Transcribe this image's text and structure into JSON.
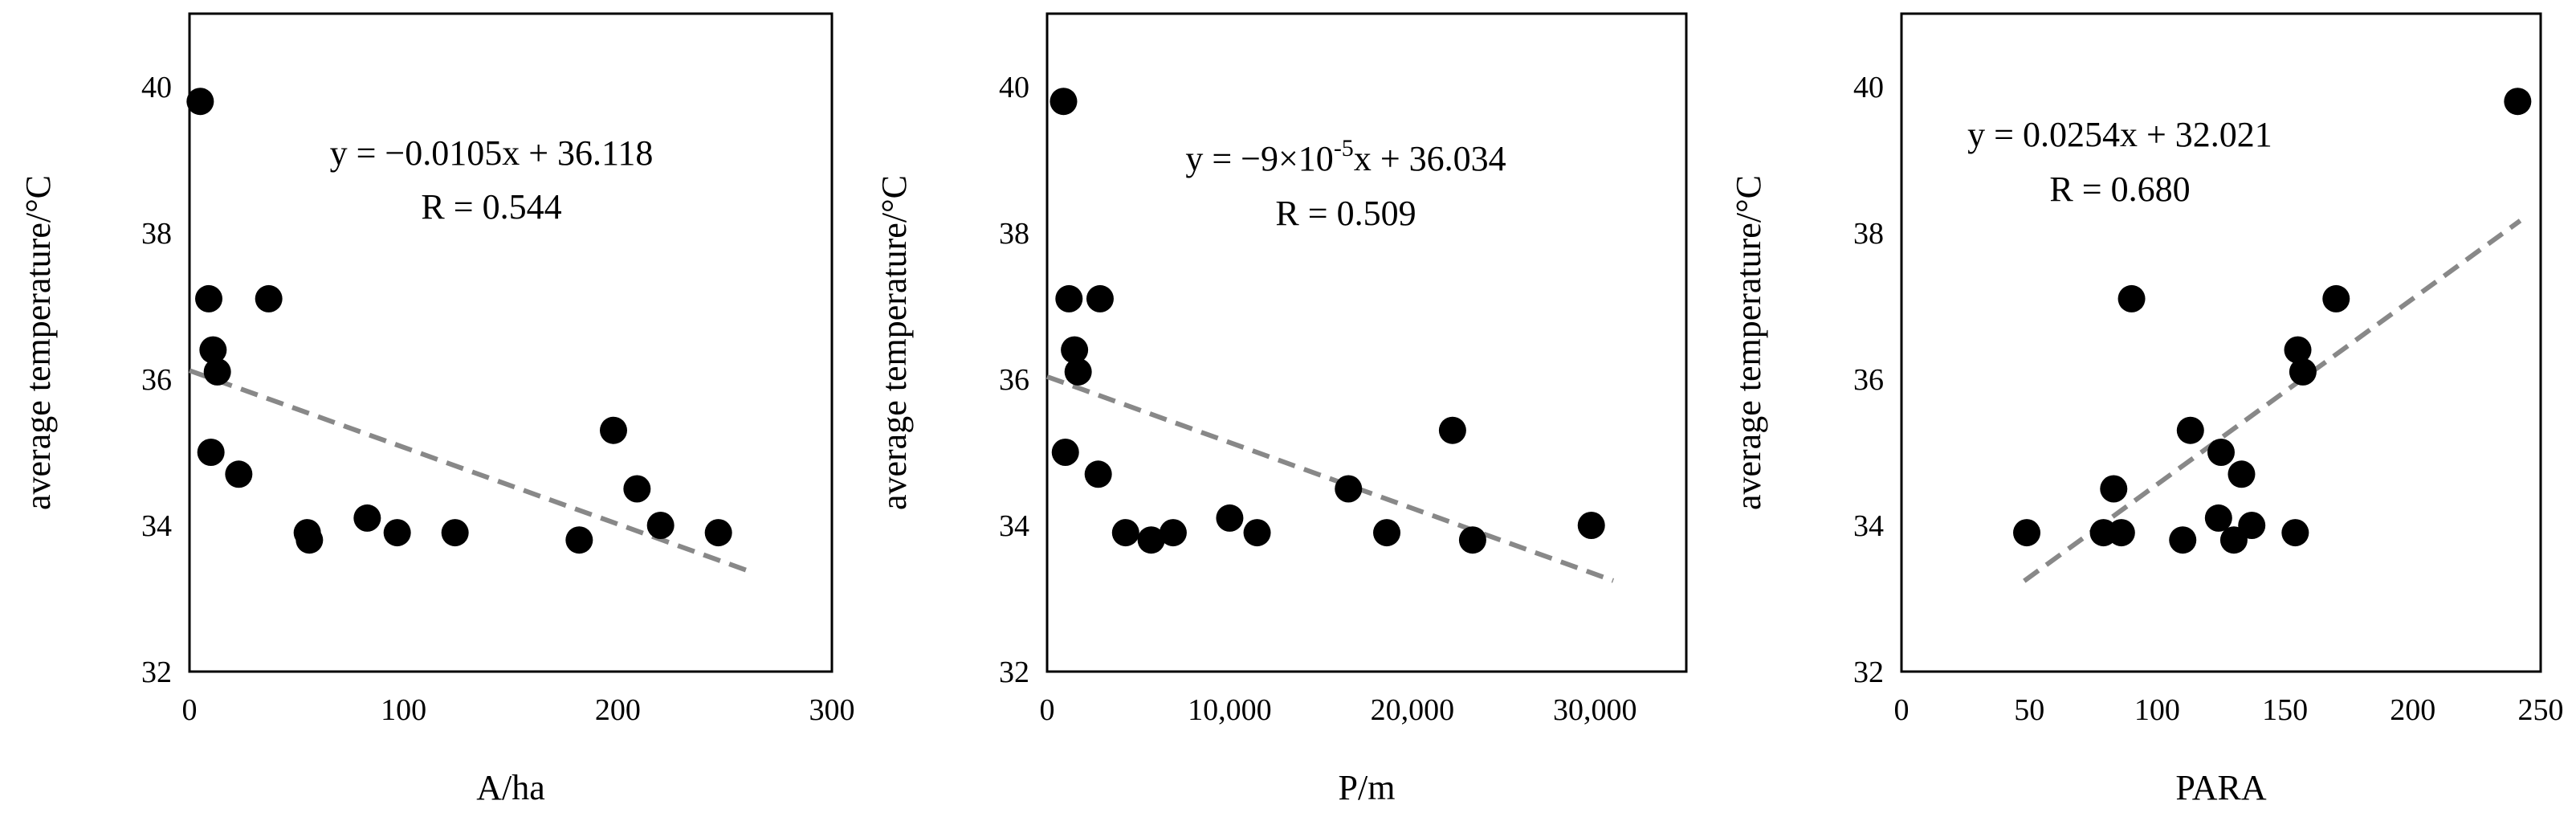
{
  "chart_data": [
    {
      "type": "scatter",
      "xlabel": "A/ha",
      "ylabel": "average temperature/°C",
      "xlim": [
        0,
        300
      ],
      "ylim": [
        32,
        41
      ],
      "x_ticks": [
        "0",
        "100",
        "200",
        "300"
      ],
      "y_ticks": [
        "32",
        "34",
        "36",
        "38",
        "40"
      ],
      "x_tick_values": [
        0,
        100,
        200,
        300
      ],
      "y_tick_values": [
        32,
        34,
        36,
        38,
        40
      ],
      "equation": "y = −0.0105x + 36.118",
      "r_label": "R = 0.544",
      "trendline": {
        "slope": -0.0105,
        "intercept": 36.118,
        "x_range": [
          0,
          260
        ]
      },
      "x": [
        5,
        9,
        10,
        11,
        13,
        23,
        37,
        55,
        56,
        83,
        97,
        124,
        182,
        198,
        209,
        220,
        247
      ],
      "y": [
        39.8,
        37.1,
        35.0,
        36.4,
        36.1,
        34.7,
        37.1,
        33.9,
        33.8,
        34.1,
        33.9,
        33.9,
        33.8,
        35.3,
        34.5,
        34.0,
        33.9
      ]
    },
    {
      "type": "scatter",
      "xlabel": "P/m",
      "ylabel": "average temperature/°C",
      "xlim": [
        0,
        35000
      ],
      "ylim": [
        32,
        41
      ],
      "x_ticks": [
        "0",
        "10,000",
        "20,000",
        "30,000"
      ],
      "y_ticks": [
        "32",
        "34",
        "36",
        "38",
        "40"
      ],
      "x_tick_values": [
        0,
        10000,
        20000,
        30000
      ],
      "y_tick_values": [
        32,
        34,
        36,
        38,
        40
      ],
      "equation": "y = −9×10",
      "equation_exp": "-5",
      "equation_tail": "x + 36.034",
      "r_label": "R = 0.509",
      "trendline": {
        "slope": -9e-05,
        "intercept": 36.034,
        "x_range": [
          0,
          31000
        ]
      },
      "x": [
        900,
        1000,
        1200,
        1500,
        1700,
        2800,
        2900,
        4300,
        5700,
        6900,
        10000,
        11500,
        16500,
        18600,
        22200,
        23300,
        29800
      ],
      "y": [
        39.8,
        35.0,
        37.1,
        36.4,
        36.1,
        34.7,
        37.1,
        33.9,
        33.8,
        33.9,
        34.1,
        33.9,
        34.5,
        33.9,
        35.3,
        33.8,
        34.0
      ]
    },
    {
      "type": "scatter",
      "xlabel": "PARA",
      "ylabel": "average temperature/°C",
      "xlim": [
        0,
        250
      ],
      "ylim": [
        32,
        41
      ],
      "x_ticks": [
        "0",
        "50",
        "100",
        "150",
        "200",
        "250"
      ],
      "y_ticks": [
        "32",
        "34",
        "36",
        "38",
        "40"
      ],
      "x_tick_values": [
        0,
        50,
        100,
        150,
        200,
        250
      ],
      "y_tick_values": [
        32,
        34,
        36,
        38,
        40
      ],
      "equation": "y = 0.0254x + 32.021",
      "r_label": "R = 0.680",
      "trendline": {
        "slope": 0.0254,
        "intercept": 32.021,
        "x_range": [
          48,
          242
        ]
      },
      "x": [
        49,
        79,
        83,
        86,
        90,
        110,
        113,
        124,
        125,
        130,
        133,
        137,
        154,
        155,
        157,
        170,
        241
      ],
      "y": [
        33.9,
        33.9,
        34.5,
        33.9,
        37.1,
        33.8,
        35.3,
        34.1,
        35.0,
        33.8,
        34.7,
        34.0,
        33.9,
        36.4,
        36.1,
        37.1,
        39.8
      ]
    }
  ]
}
